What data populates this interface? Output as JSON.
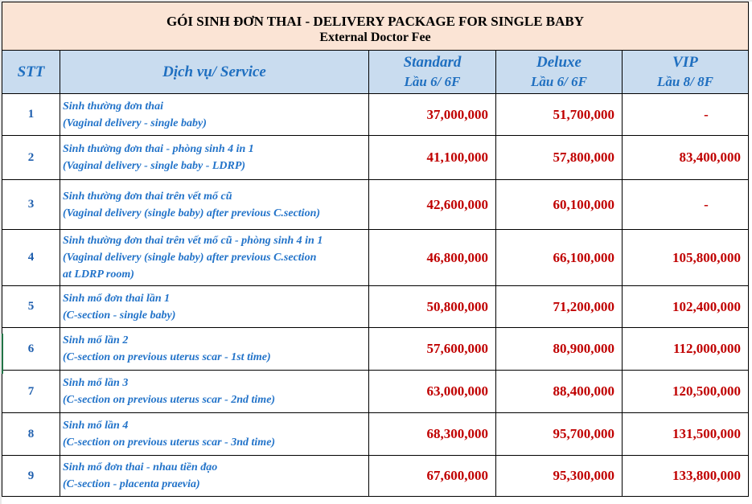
{
  "title": {
    "line1": "GÓI SINH ĐƠN THAI - DELIVERY PACKAGE FOR SINGLE BABY",
    "line2": "External Doctor Fee"
  },
  "headers": {
    "stt": "STT",
    "service": "Dịch vụ/ Service",
    "standard": "Standard",
    "standard_floor": "Lầu 6/ 6F",
    "deluxe": "Deluxe",
    "deluxe_floor": "Lầu 6/ 6F",
    "vip": "VIP",
    "vip_floor": "Lầu 8/ 8F"
  },
  "rows": [
    {
      "stt": "1",
      "vi": "Sinh thường đơn thai",
      "en": "(Vaginal delivery - single baby)",
      "en2": "",
      "standard": "37,000,000",
      "deluxe": "51,700,000",
      "vip": "-"
    },
    {
      "stt": "2",
      "vi": "Sinh thường đơn thai - phòng sinh 4 in 1",
      "en": "(Vaginal delivery - single baby - LDRP)",
      "en2": "",
      "standard": "41,100,000",
      "deluxe": "57,800,000",
      "vip": "83,400,000"
    },
    {
      "stt": "3",
      "vi": "Sinh thường đơn thai trên vết mổ cũ",
      "en": "(Vaginal delivery (single baby) after previous C.section)",
      "en2": "",
      "standard": "42,600,000",
      "deluxe": "60,100,000",
      "vip": "-"
    },
    {
      "stt": "4",
      "vi": "Sinh thường đơn thai trên vết mổ cũ - phòng sinh 4 in 1",
      "en": "(Vaginal delivery (single baby) after previous C.section",
      "en2": "at LDRP room)",
      "standard": "46,800,000",
      "deluxe": "66,100,000",
      "vip": "105,800,000"
    },
    {
      "stt": "5",
      "vi": "Sinh mổ đơn thai lần 1",
      "en": "(C-section - single baby)",
      "en2": "",
      "standard": "50,800,000",
      "deluxe": "71,200,000",
      "vip": "102,400,000"
    },
    {
      "stt": "6",
      "vi": "Sinh mổ lần 2",
      "en": "(C-section on previous uterus scar - 1st time)",
      "en2": "",
      "standard": "57,600,000",
      "deluxe": "80,900,000",
      "vip": "112,000,000"
    },
    {
      "stt": "7",
      "vi": "Sinh mổ lần 3",
      "en": "(C-section on previous uterus scar - 2nd time)",
      "en2": "",
      "standard": "63,000,000",
      "deluxe": "88,400,000",
      "vip": "120,500,000"
    },
    {
      "stt": "8",
      "vi": "Sinh mổ lần 4",
      "en": "(C-section on previous uterus scar - 3nd time)",
      "en2": "",
      "standard": "68,300,000",
      "deluxe": "95,700,000",
      "vip": "131,500,000"
    },
    {
      "stt": "9",
      "vi": "Sinh mổ đơn thai - nhau tiền đạo",
      "en": "(C-section - placenta praevia)",
      "en2": "",
      "standard": "67,600,000",
      "deluxe": "95,300,000",
      "vip": "133,800,000"
    }
  ]
}
